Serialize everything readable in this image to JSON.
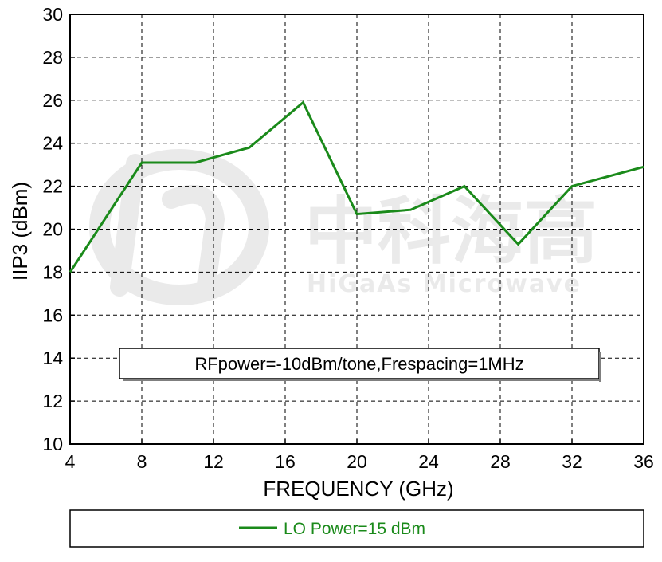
{
  "chart_data": {
    "type": "line",
    "xlabel": "FREQUENCY (GHz)",
    "ylabel": "IIP3 (dBm)",
    "xlim": [
      4,
      36
    ],
    "ylim": [
      10,
      30
    ],
    "xticks": [
      4,
      8,
      12,
      16,
      20,
      24,
      28,
      32,
      36
    ],
    "yticks": [
      10,
      12,
      14,
      16,
      18,
      20,
      22,
      24,
      26,
      28,
      30
    ],
    "grid": true,
    "annotation": "RFpower=-10dBm/tone,Frespacing=1MHz",
    "legend_position": "bottom",
    "series": [
      {
        "name": "LO Power=15 dBm",
        "color": "#1a8a1a",
        "x": [
          4,
          8,
          11,
          14,
          17,
          20,
          23,
          26,
          29,
          32,
          36
        ],
        "y": [
          18.0,
          23.1,
          23.1,
          23.8,
          25.9,
          20.7,
          20.9,
          22.0,
          19.3,
          22.0,
          22.9
        ]
      }
    ]
  },
  "watermark": {
    "chinese": "中科海高",
    "english": "HiGaAs Microwave"
  }
}
